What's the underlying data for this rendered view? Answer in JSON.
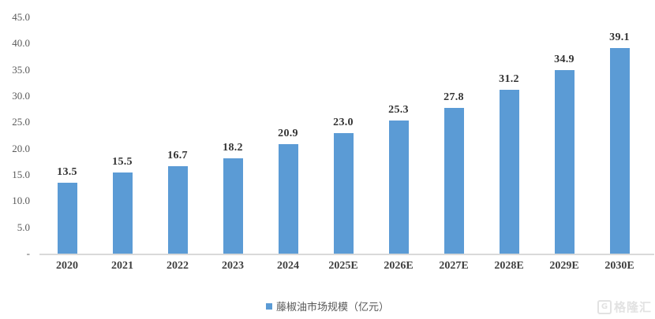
{
  "chart_data": {
    "type": "bar",
    "title": "",
    "xlabel": "",
    "ylabel": "",
    "categories": [
      "2020",
      "2021",
      "2022",
      "2023",
      "2024",
      "2025E",
      "2026E",
      "2027E",
      "2028E",
      "2029E",
      "2030E"
    ],
    "values": [
      13.5,
      15.5,
      16.7,
      18.2,
      20.9,
      23.0,
      25.3,
      27.8,
      31.2,
      34.9,
      39.1
    ],
    "value_labels": [
      "13.5",
      "15.5",
      "16.7",
      "18.2",
      "20.9",
      "23.0",
      "25.3",
      "27.8",
      "31.2",
      "34.9",
      "39.1"
    ],
    "ylim": [
      0,
      45
    ],
    "ytick_labels": [
      "45.0",
      "40.0",
      "35.0",
      "30.0",
      "25.0",
      "20.0",
      "15.0",
      "10.0",
      "5.0",
      "-"
    ],
    "grid": false,
    "legend_position": "bottom",
    "legend_label": "藤椒油市场规模（亿元）"
  },
  "colors": {
    "bar": "#5B9BD5",
    "axis_line": "#D9D9D9",
    "ytick_text": "#595959",
    "value_label_text": "#333333",
    "xtick_text": "#3f3f3f",
    "legend_text": "#595959",
    "watermark": "#E2E2E2"
  },
  "watermark": {
    "icon_letter": "G",
    "logo_text": "格隆汇"
  }
}
